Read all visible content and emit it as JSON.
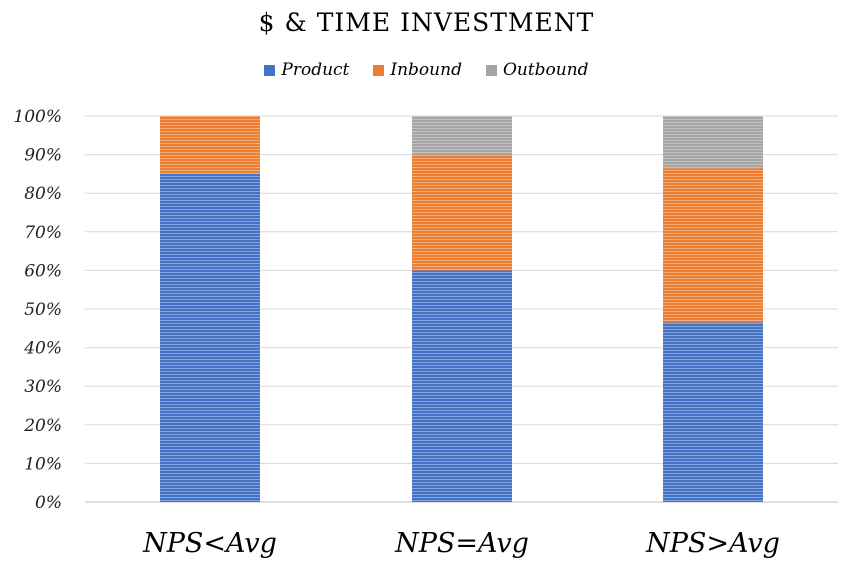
{
  "chart_data": {
    "type": "bar",
    "stacked": true,
    "title": "$ & TIME INVESTMENT",
    "categories": [
      "NPS<Avg",
      "NPS=Avg",
      "NPS>Avg"
    ],
    "series": [
      {
        "name": "Product",
        "color": "#4472C4",
        "values": [
          85,
          60,
          46.5
        ]
      },
      {
        "name": "Inbound",
        "color": "#ED7D31",
        "values": [
          15,
          30,
          40
        ]
      },
      {
        "name": "Outbound",
        "color": "#A5A5A5",
        "values": [
          0,
          10,
          13.5
        ]
      }
    ],
    "yticks": [
      "0%",
      "10%",
      "20%",
      "30%",
      "40%",
      "50%",
      "60%",
      "70%",
      "80%",
      "90%",
      "100%"
    ],
    "ylim": [
      0,
      100
    ],
    "grid": true,
    "legend_position": "top"
  }
}
